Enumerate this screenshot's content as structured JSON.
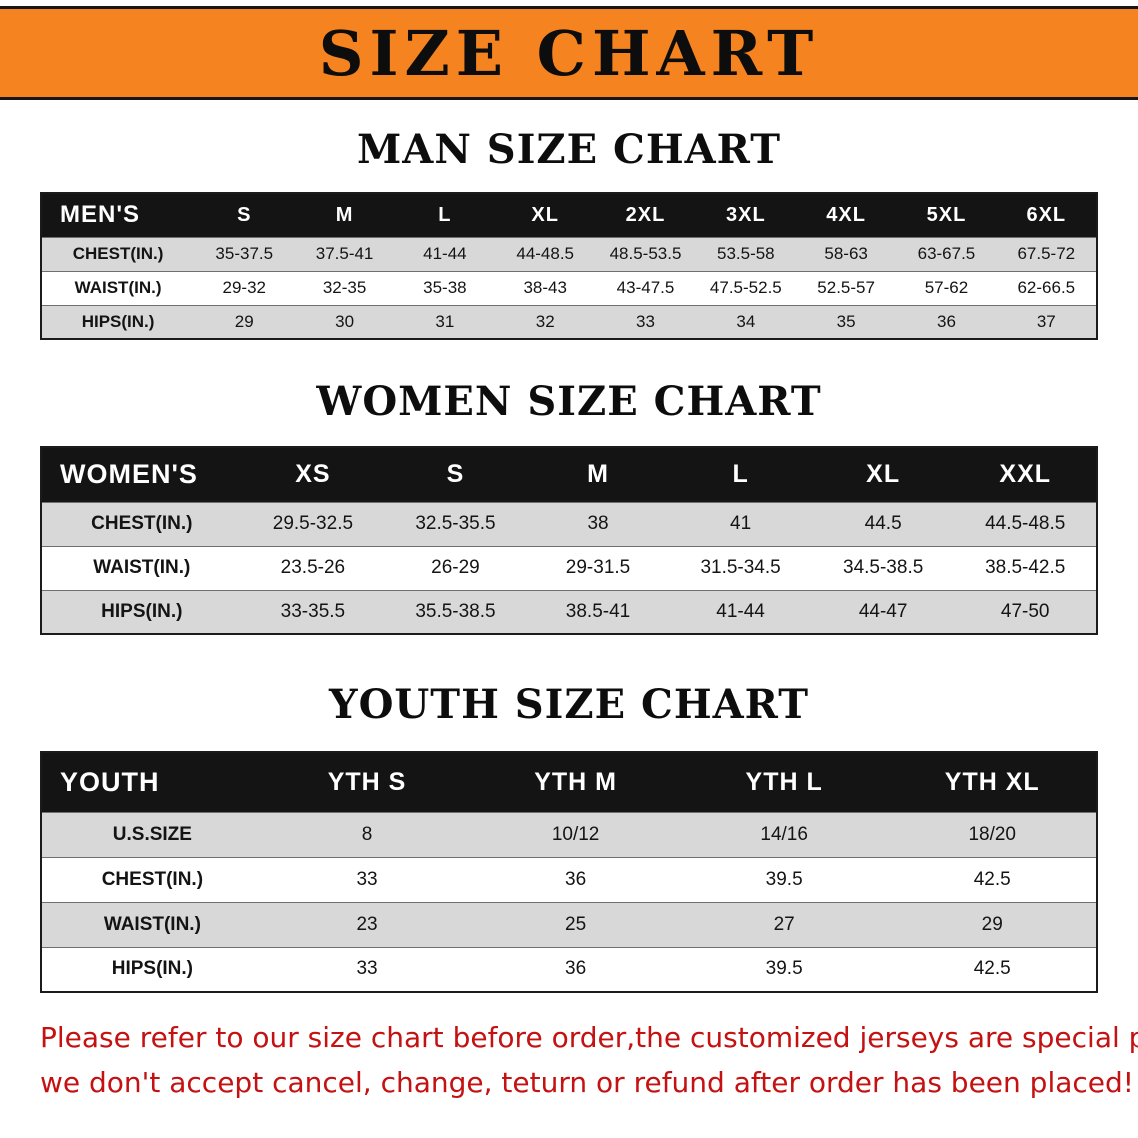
{
  "banner": {
    "title": "SIZE CHART",
    "bg_color": "#F5831F",
    "text_color": "#0d0d0d"
  },
  "tables": {
    "men": {
      "section_title": "MAN SIZE CHART",
      "header": [
        "MEN'S",
        "S",
        "M",
        "L",
        "XL",
        "2XL",
        "3XL",
        "4XL",
        "5XL",
        "6XL"
      ],
      "rows": [
        [
          "CHEST(IN.)",
          "35-37.5",
          "37.5-41",
          "41-44",
          "44-48.5",
          "48.5-53.5",
          "53.5-58",
          "58-63",
          "63-67.5",
          "67.5-72"
        ],
        [
          "WAIST(IN.)",
          "29-32",
          "32-35",
          "35-38",
          "38-43",
          "43-47.5",
          "47.5-52.5",
          "52.5-57",
          "57-62",
          "62-66.5"
        ],
        [
          "HIPS(IN.)",
          "29",
          "30",
          "31",
          "32",
          "33",
          "34",
          "35",
          "36",
          "37"
        ]
      ]
    },
    "women": {
      "section_title": "WOMEN SIZE CHART",
      "header": [
        "WOMEN'S",
        "XS",
        "S",
        "M",
        "L",
        "XL",
        "XXL"
      ],
      "rows": [
        [
          "CHEST(IN.)",
          "29.5-32.5",
          "32.5-35.5",
          "38",
          "41",
          "44.5",
          "44.5-48.5"
        ],
        [
          "WAIST(IN.)",
          "23.5-26",
          "26-29",
          "29-31.5",
          "31.5-34.5",
          "34.5-38.5",
          "38.5-42.5"
        ],
        [
          "HIPS(IN.)",
          "33-35.5",
          "35.5-38.5",
          "38.5-41",
          "41-44",
          "44-47",
          "47-50"
        ]
      ]
    },
    "youth": {
      "section_title": "YOUTH SIZE CHART",
      "header": [
        "YOUTH",
        "YTH S",
        "YTH M",
        "YTH L",
        "YTH XL"
      ],
      "rows": [
        [
          "U.S.SIZE",
          "8",
          "10/12",
          "14/16",
          "18/20"
        ],
        [
          "CHEST(IN.)",
          "33",
          "36",
          "39.5",
          "42.5"
        ],
        [
          "WAIST(IN.)",
          "23",
          "25",
          "27",
          "29"
        ],
        [
          "HIPS(IN.)",
          "33",
          "36",
          "39.5",
          "42.5"
        ]
      ]
    }
  },
  "footer": {
    "line1": "Please refer to our size chart before order,the customized jerseys are special products,",
    "line2": "we don't accept cancel, change, teturn or refund after order has been placed!",
    "text_color": "#c41111"
  }
}
